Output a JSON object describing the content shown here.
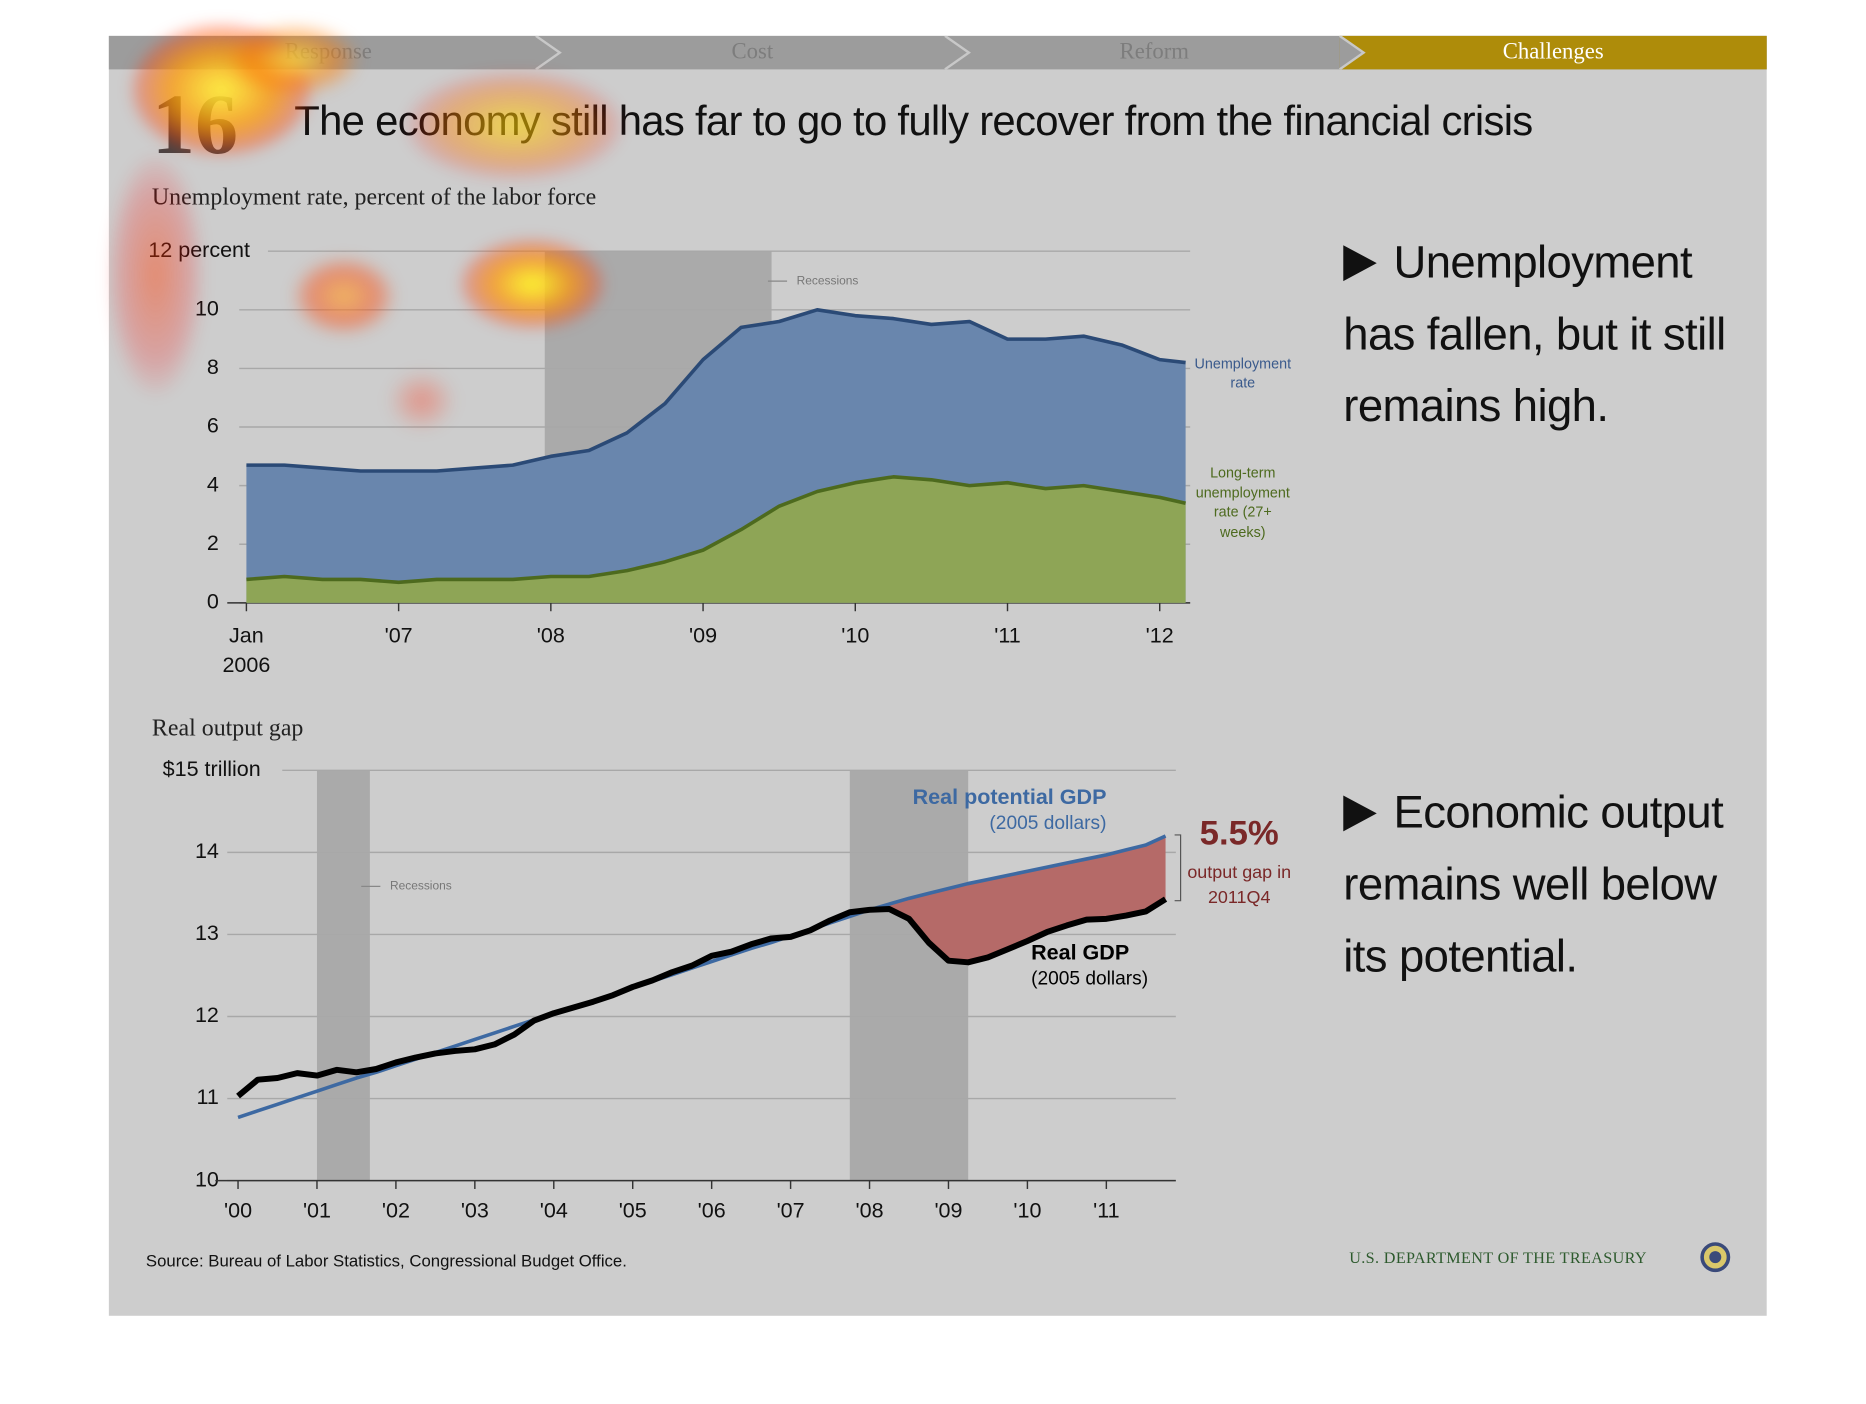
{
  "nav": [
    "Response",
    "Cost",
    "Reform",
    "Challenges"
  ],
  "slide_number": "16",
  "title": "The economy still has far to go to fully recover from the financial crisis",
  "bullets": [
    "Unemployment has fallen, but it still remains high.",
    "Economic output remains well below its potential."
  ],
  "source": "Source: Bureau of Labor Statistics, Congressional Budget Office.",
  "footer": "U.S. DEPARTMENT OF THE TREASURY",
  "chart_data": [
    {
      "type": "area",
      "title": "Unemployment rate, percent of the labor force",
      "x": [
        2006,
        2006.25,
        2006.5,
        2006.75,
        2007,
        2007.25,
        2007.5,
        2007.75,
        2008,
        2008.25,
        2008.5,
        2008.75,
        2009,
        2009.25,
        2009.5,
        2009.75,
        2010,
        2010.25,
        2010.5,
        2010.75,
        2011,
        2011.25,
        2011.5,
        2011.75,
        2012,
        2012.17
      ],
      "series": [
        {
          "name": "Unemployment rate",
          "color": "#6986ad",
          "line_color": "#2b4a76",
          "values": [
            4.7,
            4.7,
            4.6,
            4.5,
            4.5,
            4.5,
            4.6,
            4.7,
            5.0,
            5.2,
            5.8,
            6.8,
            8.3,
            9.4,
            9.6,
            10.0,
            9.8,
            9.7,
            9.5,
            9.6,
            9.0,
            9.0,
            9.1,
            8.8,
            8.3,
            8.2
          ]
        },
        {
          "name": "Long-term unemployment rate (27+ weeks)",
          "color": "#8ea556",
          "line_color": "#4d6a1e",
          "values": [
            0.8,
            0.9,
            0.8,
            0.8,
            0.7,
            0.8,
            0.8,
            0.8,
            0.9,
            0.9,
            1.1,
            1.4,
            1.8,
            2.5,
            3.3,
            3.8,
            4.1,
            4.3,
            4.2,
            4.0,
            4.1,
            3.9,
            4.0,
            3.8,
            3.6,
            3.4
          ]
        }
      ],
      "recessions": [
        [
          2007.96,
          2009.45
        ]
      ],
      "recession_label": "Recessions",
      "xlim": [
        2006,
        2012.2
      ],
      "xticks": [
        {
          "value": 2006,
          "label": "Jan 2006"
        },
        {
          "value": 2007,
          "label": "'07"
        },
        {
          "value": 2008,
          "label": "'08"
        },
        {
          "value": 2009,
          "label": "'09"
        },
        {
          "value": 2010,
          "label": "'10"
        },
        {
          "value": 2011,
          "label": "'11"
        },
        {
          "value": 2012,
          "label": "'12"
        }
      ],
      "ylim": [
        0,
        12
      ],
      "yticks": [
        0,
        2,
        4,
        6,
        8,
        10,
        {
          "value": 12,
          "label": "12 percent"
        }
      ],
      "grid": true
    },
    {
      "type": "line",
      "title": "Real output gap",
      "x": [
        2000,
        2000.25,
        2000.5,
        2000.75,
        2001,
        2001.25,
        2001.5,
        2001.75,
        2002,
        2002.25,
        2002.5,
        2002.75,
        2003,
        2003.25,
        2003.5,
        2003.75,
        2004,
        2004.25,
        2004.5,
        2004.75,
        2005,
        2005.25,
        2005.5,
        2005.75,
        2006,
        2006.25,
        2006.5,
        2006.75,
        2007,
        2007.25,
        2007.5,
        2007.75,
        2008,
        2008.25,
        2008.5,
        2008.75,
        2009,
        2009.25,
        2009.5,
        2009.75,
        2010,
        2010.25,
        2010.5,
        2010.75,
        2011,
        2011.25,
        2011.5,
        2011.75
      ],
      "series": [
        {
          "name": "Real potential GDP",
          "unit": "(2005 dollars)",
          "color": "#3d69a2",
          "values": [
            10.77,
            10.85,
            10.93,
            11.01,
            11.09,
            11.17,
            11.25,
            11.32,
            11.4,
            11.48,
            11.56,
            11.64,
            11.72,
            11.8,
            11.88,
            11.96,
            12.03,
            12.11,
            12.19,
            12.27,
            12.35,
            12.43,
            12.51,
            12.59,
            12.67,
            12.75,
            12.83,
            12.9,
            12.98,
            13.06,
            13.14,
            13.22,
            13.3,
            13.37,
            13.44,
            13.5,
            13.56,
            13.62,
            13.67,
            13.72,
            13.77,
            13.82,
            13.87,
            13.92,
            13.97,
            14.03,
            14.09,
            14.2
          ]
        },
        {
          "name": "Real GDP",
          "unit": "(2005 dollars)",
          "color": "#000000",
          "values": [
            11.03,
            11.23,
            11.25,
            11.31,
            11.28,
            11.35,
            11.32,
            11.36,
            11.44,
            11.5,
            11.55,
            11.58,
            11.6,
            11.66,
            11.78,
            11.95,
            12.04,
            12.11,
            12.18,
            12.26,
            12.36,
            12.44,
            12.54,
            12.62,
            12.74,
            12.79,
            12.88,
            12.95,
            12.97,
            13.05,
            13.17,
            13.27,
            13.3,
            13.31,
            13.19,
            12.9,
            12.68,
            12.66,
            12.72,
            12.82,
            12.92,
            13.03,
            13.11,
            13.18,
            13.19,
            13.23,
            13.28,
            13.43
          ]
        }
      ],
      "recessions": [
        [
          2001.0,
          2001.67
        ],
        [
          2007.75,
          2009.25
        ]
      ],
      "recession_label": "Recessions",
      "gap_label": "5.5%",
      "gap_text": "output gap in 2011Q4",
      "xlim": [
        2000,
        2011.88
      ],
      "xticks": [
        {
          "value": 2000,
          "label": "'00"
        },
        {
          "value": 2001,
          "label": "'01"
        },
        {
          "value": 2002,
          "label": "'02"
        },
        {
          "value": 2003,
          "label": "'03"
        },
        {
          "value": 2004,
          "label": "'04"
        },
        {
          "value": 2005,
          "label": "'05"
        },
        {
          "value": 2006,
          "label": "'06"
        },
        {
          "value": 2007,
          "label": "'07"
        },
        {
          "value": 2008,
          "label": "'08"
        },
        {
          "value": 2009,
          "label": "'09"
        },
        {
          "value": 2010,
          "label": "'10"
        },
        {
          "value": 2011,
          "label": "'11"
        }
      ],
      "ylim": [
        10,
        15
      ],
      "yticks": [
        10,
        11,
        12,
        13,
        14,
        {
          "value": 15,
          "label": "$15 trillion"
        }
      ],
      "grid": true
    }
  ]
}
